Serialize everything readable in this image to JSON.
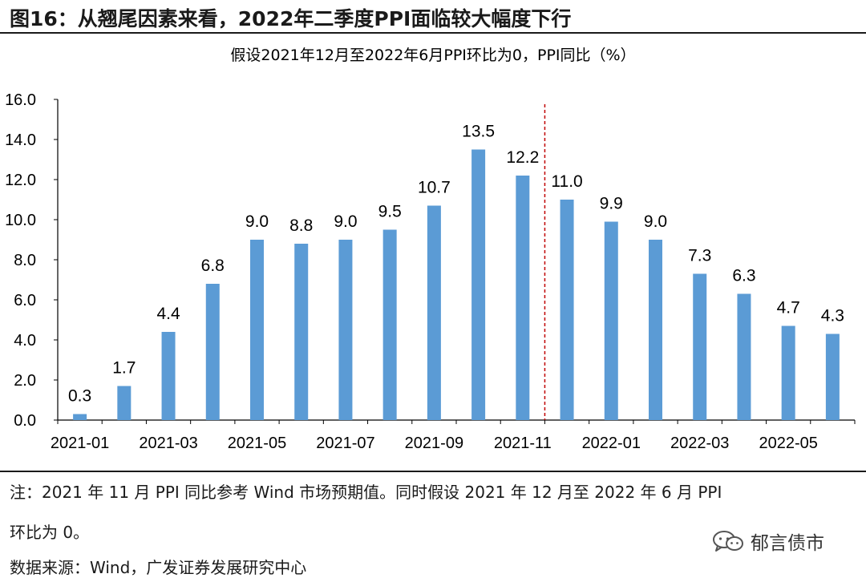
{
  "header": {
    "title": "图16：从翘尾因素来看，2022年二季度PPI面临较大幅度下行"
  },
  "chart_data": {
    "type": "bar",
    "title": "假设2021年12月至2022年6月PPI环比为0，PPI同比（%）",
    "categories": [
      "2021-01",
      "2021-02",
      "2021-03",
      "2021-04",
      "2021-05",
      "2021-06",
      "2021-07",
      "2021-08",
      "2021-09",
      "2021-10",
      "2021-11",
      "2021-12",
      "2022-01",
      "2022-02",
      "2022-03",
      "2022-04",
      "2022-05",
      "2022-06"
    ],
    "values": [
      0.3,
      1.7,
      4.4,
      6.8,
      9.0,
      8.8,
      9.0,
      9.5,
      10.7,
      13.5,
      12.2,
      11.0,
      9.9,
      9.0,
      7.3,
      6.3,
      4.7,
      4.3
    ],
    "value_labels": [
      "0.3",
      "1.7",
      "4.4",
      "6.8",
      "9.0",
      "8.8",
      "9.0",
      "9.5",
      "10.7",
      "13.5",
      "12.2",
      "11.0",
      "9.9",
      "9.0",
      "7.3",
      "6.3",
      "4.7",
      "4.3"
    ],
    "x_tick_labels": [
      "2021-01",
      "2021-03",
      "2021-05",
      "2021-07",
      "2021-09",
      "2021-11",
      "2022-01",
      "2022-03",
      "2022-05"
    ],
    "x_tick_indices": [
      0,
      2,
      4,
      6,
      8,
      10,
      12,
      14,
      16
    ],
    "y_tick_labels": [
      "0.0",
      "2.0",
      "4.0",
      "6.0",
      "8.0",
      "10.0",
      "12.0",
      "14.0",
      "16.0"
    ],
    "ylim": [
      0,
      16
    ],
    "y_ticks": [
      0,
      2,
      4,
      6,
      8,
      10,
      12,
      14,
      16
    ],
    "xlabel": "",
    "ylabel": "",
    "bar_color": "#5b9bd5",
    "divider_after_category": "2021-11",
    "divider_color": "#c00000",
    "grid": false
  },
  "footer": {
    "note_line1": "注：2021 年 11 月 PPI 同比参考 Wind 市场预期值。同时假设 2021 年 12 月至 2022 年 6 月 PPI",
    "note_line2": "环比为 0。",
    "source": "数据来源：Wind，广发证券发展研究中心",
    "watermark": "郁言债市"
  }
}
